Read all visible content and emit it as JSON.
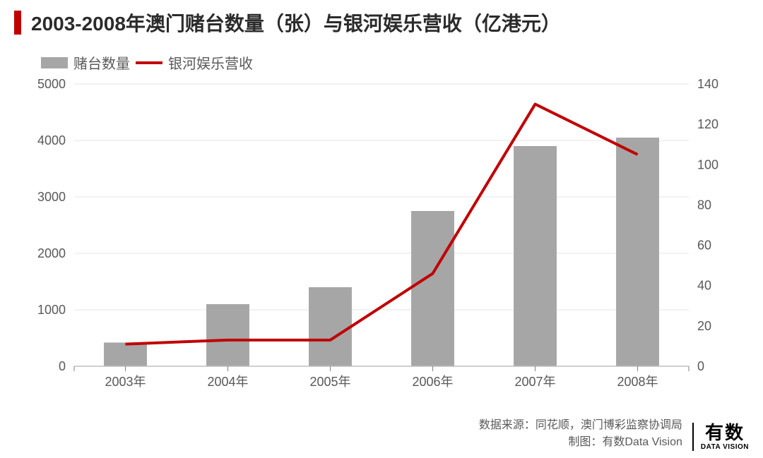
{
  "title": "2003-2008年澳门赌台数量（张）与银河娱乐营收（亿港元）",
  "accent_color": "#c00000",
  "legend": {
    "bar_label": "赌台数量",
    "line_label": "银河娱乐营收",
    "bar_color": "#a6a6a6",
    "line_color": "#c00000"
  },
  "chart": {
    "type": "bar+line",
    "categories": [
      "2003年",
      "2004年",
      "2005年",
      "2006年",
      "2007年",
      "2008年"
    ],
    "bar_series": {
      "name": "赌台数量",
      "values": [
        420,
        1100,
        1400,
        2750,
        3900,
        4050
      ],
      "color": "#a6a6a6",
      "bar_width_ratio": 0.42
    },
    "line_series": {
      "name": "银河娱乐营收",
      "values": [
        11,
        13,
        13,
        46,
        130,
        105
      ],
      "color": "#c00000",
      "line_width": 4
    },
    "y_left": {
      "min": 0,
      "max": 5000,
      "step": 1000
    },
    "y_right": {
      "min": 0,
      "max": 140,
      "step": 20
    },
    "grid_color": "#e6e6e6",
    "axis_line_color": "#bfbfbf",
    "tick_mark_color": "#808080",
    "label_color": "#595959",
    "label_fontsize": 18,
    "background_color": "#ffffff"
  },
  "footer": {
    "source_label": "数据来源：同花顺，澳门博彩监察协调局",
    "credit_label": "制图：有数Data Vision",
    "logo_cn": "有数",
    "logo_en": "DATA VISION"
  }
}
